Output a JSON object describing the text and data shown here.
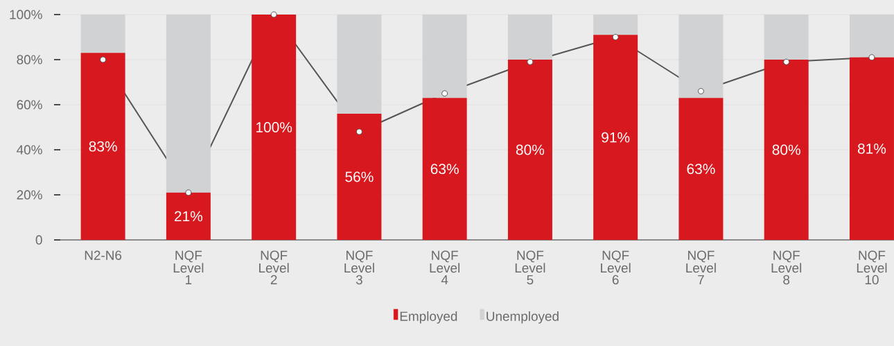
{
  "chart_data": {
    "type": "bar",
    "stacked": true,
    "categories": [
      "N2-N6",
      "NQF Level 1",
      "NQF Level 2",
      "NQF Level 3",
      "NQF Level 4",
      "NQF Level 5",
      "NQF Level 6",
      "NQF Level 7",
      "NQF Level 8",
      "NQF Level 10"
    ],
    "series": [
      {
        "name": "Employed",
        "color": "#d7191f",
        "values": [
          83,
          21,
          100,
          56,
          63,
          80,
          91,
          63,
          80,
          81
        ],
        "value_labels": [
          "83%",
          "21%",
          "100%",
          "56%",
          "63%",
          "80%",
          "91%",
          "63%",
          "80%",
          "81%"
        ]
      },
      {
        "name": "Unemployed",
        "color": "#d1d2d4",
        "values": [
          17,
          79,
          0,
          44,
          37,
          20,
          9,
          37,
          20,
          19
        ]
      },
      {
        "type": "line",
        "color": "#555555",
        "marker": "circle",
        "values": [
          80,
          21,
          100,
          48,
          65,
          79,
          90,
          66,
          79,
          81
        ]
      }
    ],
    "ylim": [
      0,
      100
    ],
    "yticks": [
      0,
      {
        "value": 20,
        "label": "20%"
      },
      {
        "value": 40,
        "label": "40%"
      },
      {
        "value": 60,
        "label": "60%"
      },
      {
        "value": 80,
        "label": "80%"
      },
      {
        "value": 100,
        "label": "100%"
      }
    ],
    "grid": "y",
    "legend": "bottom"
  }
}
